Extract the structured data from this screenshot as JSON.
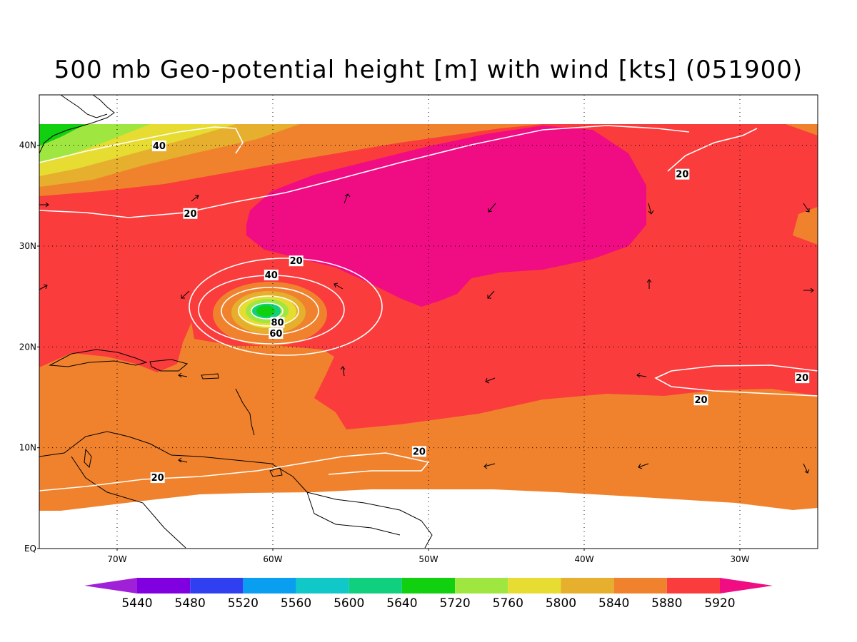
{
  "title": "500 mb Geo-potential height [m] with wind [kts] (051900)",
  "lat_labels": [
    {
      "lat": 40,
      "label": "40N"
    },
    {
      "lat": 30,
      "label": "30N"
    },
    {
      "lat": 20,
      "label": "20N"
    },
    {
      "lat": 10,
      "label": "10N"
    },
    {
      "lat": 0,
      "label": "EQ"
    }
  ],
  "lon_labels": [
    {
      "lon": -70,
      "label": "70W"
    },
    {
      "lon": -60,
      "label": "60W"
    },
    {
      "lon": -50,
      "label": "50W"
    },
    {
      "lon": -40,
      "label": "40W"
    },
    {
      "lon": -30,
      "label": "30W"
    }
  ],
  "colorbar": {
    "labels": [
      "5440",
      "5480",
      "5520",
      "5560",
      "5600",
      "5640",
      "5720",
      "5760",
      "5800",
      "5840",
      "5880",
      "5920"
    ],
    "colors": [
      "#a020d8",
      "#8000e0",
      "#3040f0",
      "#0a9ef0",
      "#10c8c8",
      "#10d080",
      "#10d010",
      "#a0e640",
      "#e6dc32",
      "#e6af2d",
      "#f0822d",
      "#fa3c3c",
      "#f00c82"
    ]
  },
  "wind_contour_labels": [
    {
      "text": "40",
      "lon": -67.3,
      "lat": 39.9
    },
    {
      "text": "20",
      "lon": -65.3,
      "lat": 33.2
    },
    {
      "text": "20",
      "lon": -58.5,
      "lat": 28.5
    },
    {
      "text": "40",
      "lon": -60.1,
      "lat": 27.1
    },
    {
      "text": "80",
      "lon": -59.7,
      "lat": 22.4
    },
    {
      "text": "60",
      "lon": -59.8,
      "lat": 21.3
    },
    {
      "text": "20",
      "lon": -33.7,
      "lat": 37.1
    },
    {
      "text": "20",
      "lon": -26.0,
      "lat": 16.9
    },
    {
      "text": "20",
      "lon": -32.5,
      "lat": 14.7
    },
    {
      "text": "20",
      "lon": -50.6,
      "lat": 9.6
    },
    {
      "text": "20",
      "lon": -67.4,
      "lat": 7.0
    }
  ],
  "map_colors": {
    "h5880": "#f0822d",
    "h5920": "#fa3c3c",
    "h5960": "#f00c82",
    "h5840": "#e6af2d",
    "h5800": "#e6dc32",
    "h5760": "#a0e640",
    "h5720": "#10d010",
    "h5640": "#10d080",
    "wind_contour": "#ffffff",
    "coastline": "#000000",
    "grid": "#000000"
  }
}
